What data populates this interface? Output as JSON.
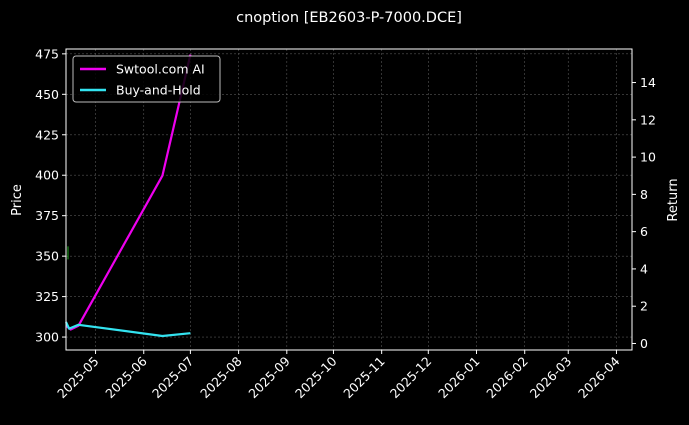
{
  "chart_data": {
    "type": "line",
    "title": "cnoption [EB2603-P-7000.DCE]",
    "xlabel": "",
    "ylabel_left": "Price",
    "ylabel_right": "Return",
    "x_range": [
      "2025-04-12",
      "2026-04-11"
    ],
    "ylim_left": [
      292,
      478
    ],
    "ylim_right": [
      -0.35,
      15.8
    ],
    "x_tick_labels": [
      "2025-05",
      "2025-06",
      "2025-07",
      "2025-08",
      "2025-09",
      "2025-10",
      "2025-11",
      "2025-12",
      "2026-01",
      "2026-02",
      "2026-03",
      "2026-04"
    ],
    "x_tick_dates": [
      "2025-05-01",
      "2025-06-01",
      "2025-07-01",
      "2025-08-01",
      "2025-09-01",
      "2025-10-01",
      "2025-11-01",
      "2025-12-01",
      "2026-01-01",
      "2026-02-01",
      "2026-03-01",
      "2026-04-01"
    ],
    "y_left_ticks": [
      300,
      325,
      350,
      375,
      400,
      425,
      450,
      475
    ],
    "y_right_ticks": [
      0,
      2,
      4,
      6,
      8,
      10,
      12,
      14
    ],
    "grid": true,
    "legend_position": "top-left",
    "series": [
      {
        "name": "Swtool.com AI",
        "axis": "right",
        "color": "#ee00ee",
        "points": [
          {
            "x": "2025-04-12",
            "y": 0.95
          },
          {
            "x": "2025-04-15",
            "y": 0.75
          },
          {
            "x": "2025-04-20",
            "y": 0.95
          },
          {
            "x": "2025-06-13",
            "y": 9.0
          },
          {
            "x": "2025-07-01",
            "y": 15.5
          }
        ]
      },
      {
        "name": "Buy-and-Hold",
        "axis": "right",
        "color": "#33e3f0",
        "points": [
          {
            "x": "2025-04-12",
            "y": 1.15
          },
          {
            "x": "2025-04-14",
            "y": 0.8
          },
          {
            "x": "2025-04-20",
            "y": 1.0
          },
          {
            "x": "2025-06-13",
            "y": 0.4
          },
          {
            "x": "2025-07-01",
            "y": 0.55
          }
        ]
      }
    ],
    "markers": [
      {
        "x": "2025-04-12",
        "price_low": 348,
        "price_high": 356,
        "color": "#22aa22"
      }
    ]
  }
}
